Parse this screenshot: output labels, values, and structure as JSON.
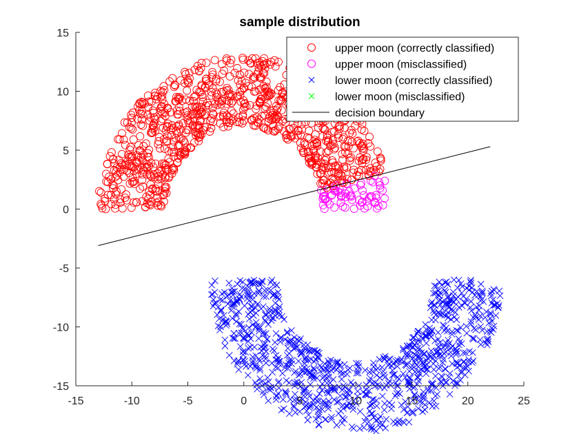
{
  "chart_data": {
    "type": "scatter",
    "title": "sample distribution",
    "xlabel": "",
    "ylabel": "",
    "xlim": [
      -15,
      25
    ],
    "ylim": [
      -15,
      15
    ],
    "x_ticks": [
      -15,
      -10,
      -5,
      0,
      5,
      10,
      15,
      20,
      25
    ],
    "y_ticks": [
      -15,
      -10,
      -5,
      0,
      5,
      10,
      15
    ],
    "grid": false,
    "legend_position": "top-right",
    "moons": {
      "upper_center": [
        0,
        0
      ],
      "lower_center": [
        10,
        -6
      ],
      "radius": 10,
      "width": 6,
      "upper_count": 1000,
      "lower_count": 1000
    },
    "series": [
      {
        "name": "upper moon (correctly classified)",
        "marker": "circle",
        "color": "#ff0000"
      },
      {
        "name": "upper moon (misclassified)",
        "marker": "circle",
        "color": "#ff00ff"
      },
      {
        "name": "lower moon (correctly classified)",
        "marker": "cross",
        "color": "#0000ff"
      },
      {
        "name": "lower moon (misclassified)",
        "marker": "cross",
        "color": "#00ff00"
      },
      {
        "name": "decision boundary",
        "marker": "line",
        "color": "#000000"
      }
    ],
    "decision_boundary": {
      "x": [
        -13,
        22
      ],
      "y": [
        -3.1,
        5.3
      ]
    }
  }
}
